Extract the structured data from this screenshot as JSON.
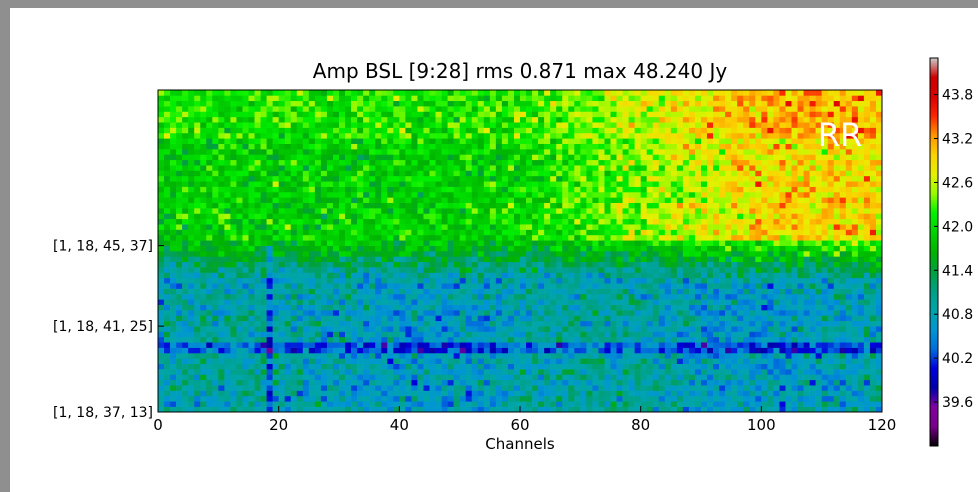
{
  "chart_data": {
    "type": "heatmap",
    "title": "Amp BSL [9:28] rms 0.871 max 48.240 Jy",
    "xlabel": "Channels",
    "ylabel": "",
    "annotation": "RR",
    "xlim": [
      0,
      120
    ],
    "x_ticks": [
      0,
      20,
      40,
      60,
      80,
      100,
      120
    ],
    "rows": 60,
    "y_tick_labels": [
      {
        "row": 0,
        "label": "[1, 18, 37, 13]"
      },
      {
        "row": 16,
        "label": "[1, 18, 41, 25]"
      },
      {
        "row": 31,
        "label": "[1, 18, 45, 37]"
      }
    ],
    "colorbar": {
      "colormap": "nipy_spectral",
      "range": [
        39.0,
        44.3
      ],
      "ticks": [
        "39.6",
        "40.2",
        "40.8",
        "41.4",
        "42.0",
        "42.6",
        "43.2",
        "43.8"
      ]
    },
    "value_summary": {
      "rms": 0.871,
      "max": 48.24,
      "unit": "Jy",
      "lower_rows_typical": 40.8,
      "upper_left_typical": 41.9,
      "upper_right_typical": 42.9
    }
  }
}
